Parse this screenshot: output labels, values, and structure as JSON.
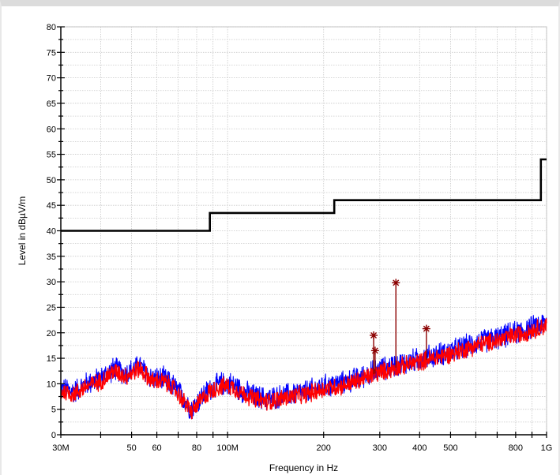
{
  "chart_data": {
    "type": "line",
    "title": "",
    "xlabel": "Frequency in Hz",
    "ylabel": "Level in dBµV/m",
    "xscale": "log",
    "xlim": [
      30000000,
      1000000000
    ],
    "ylim": [
      0,
      80
    ],
    "grid": true,
    "x_ticks": [
      {
        "value": 30000000,
        "label": "30M"
      },
      {
        "value": 50000000,
        "label": "50"
      },
      {
        "value": 60000000,
        "label": "60"
      },
      {
        "value": 80000000,
        "label": "80"
      },
      {
        "value": 100000000,
        "label": "100M"
      },
      {
        "value": 200000000,
        "label": "200"
      },
      {
        "value": 300000000,
        "label": "300"
      },
      {
        "value": 400000000,
        "label": "400"
      },
      {
        "value": 500000000,
        "label": "500"
      },
      {
        "value": 800000000,
        "label": "800"
      },
      {
        "value": 1000000000,
        "label": "1G"
      }
    ],
    "y_ticks": [
      0,
      5,
      10,
      15,
      20,
      25,
      30,
      35,
      40,
      45,
      50,
      55,
      60,
      65,
      70,
      75,
      80
    ],
    "series": [
      {
        "role": "limit",
        "color": "#000000",
        "x": [
          30000000,
          88000000,
          88000000,
          216000000,
          216000000,
          960000000,
          960000000,
          1000000000
        ],
        "y": [
          40,
          40,
          43.5,
          43.5,
          46,
          46,
          54,
          54
        ]
      },
      {
        "role": "peak",
        "color": "#0000ff",
        "x": [
          30000000,
          33000000,
          36000000,
          40000000,
          44000000,
          48000000,
          53000000,
          58000000,
          63000000,
          68000000,
          73000000,
          77000000,
          82000000,
          88000000,
          95000000,
          103000000,
          112000000,
          122000000,
          133000000,
          145000000,
          160000000,
          178000000,
          200000000,
          225000000,
          255000000,
          290000000,
          330000000,
          380000000,
          440000000,
          510000000,
          600000000,
          700000000,
          800000000,
          900000000,
          1000000000
        ],
        "y": [
          9,
          8.5,
          10,
          11,
          13,
          12,
          13.5,
          11,
          11,
          9.5,
          7,
          5,
          7,
          9,
          10,
          10,
          8.5,
          7.5,
          7,
          7.5,
          8,
          8.5,
          9.5,
          10,
          11,
          12.5,
          13.5,
          14.5,
          15.5,
          16.5,
          18,
          19,
          20,
          21,
          22
        ]
      },
      {
        "role": "average",
        "color": "#ff0000",
        "x": [
          30000000,
          33000000,
          36000000,
          40000000,
          44000000,
          48000000,
          53000000,
          58000000,
          63000000,
          68000000,
          73000000,
          77000000,
          82000000,
          88000000,
          95000000,
          103000000,
          112000000,
          122000000,
          133000000,
          145000000,
          160000000,
          178000000,
          200000000,
          225000000,
          255000000,
          290000000,
          330000000,
          380000000,
          440000000,
          510000000,
          600000000,
          700000000,
          800000000,
          900000000,
          1000000000
        ],
        "y": [
          8.5,
          8,
          9.5,
          10.5,
          12.5,
          11.5,
          13,
          10.5,
          10.5,
          9,
          6.5,
          4.5,
          6.5,
          8.5,
          9.5,
          9.5,
          8,
          7,
          6.5,
          7,
          7.5,
          8,
          9,
          9.5,
          10.5,
          12,
          13,
          14,
          15,
          16,
          17.5,
          18.5,
          19.5,
          20.5,
          21.5
        ]
      }
    ],
    "markers": [
      {
        "x": 287000000,
        "y": 19.5,
        "color": "#8b0000"
      },
      {
        "x": 290000000,
        "y": 16.5,
        "color": "#8b0000"
      },
      {
        "x": 337000000,
        "y": 29.8,
        "color": "#8b0000"
      },
      {
        "x": 420000000,
        "y": 20.8,
        "color": "#8b0000"
      }
    ]
  }
}
